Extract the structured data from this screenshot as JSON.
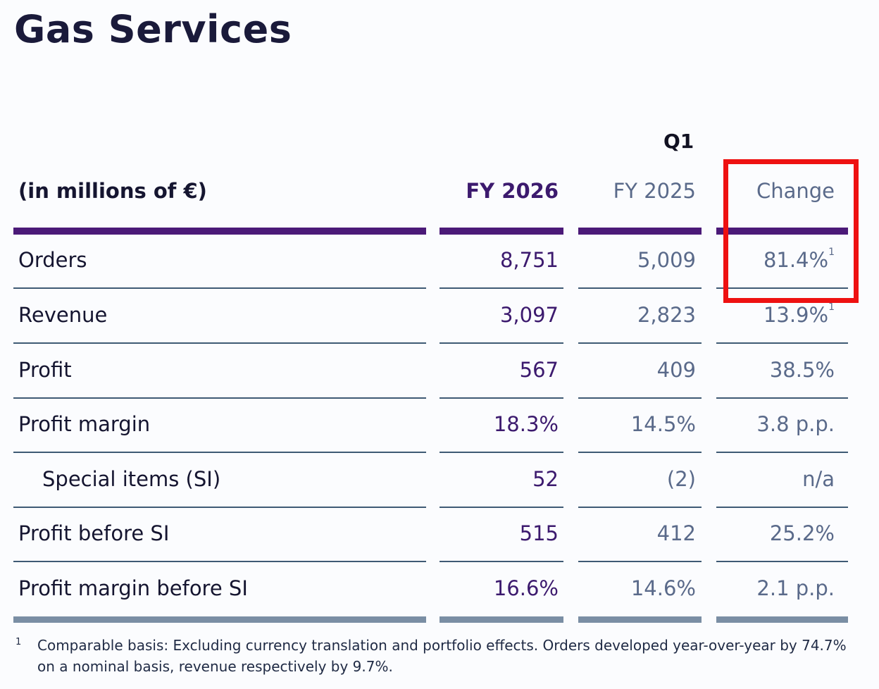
{
  "title": "Gas Services",
  "period_header": "Q1",
  "columns": {
    "label": "(in millions of €)",
    "current": "FY 2026",
    "prior": "FY 2025",
    "change": "Change"
  },
  "rows": [
    {
      "label": "Orders",
      "current": "8,751",
      "prior": "5,009",
      "change": "81.4%",
      "note": "1",
      "indent": false
    },
    {
      "label": "Revenue",
      "current": "3,097",
      "prior": "2,823",
      "change": "13.9%",
      "note": "1",
      "indent": false
    },
    {
      "label": "Profit",
      "current": "567",
      "prior": "409",
      "change": "38.5%",
      "note": "",
      "indent": false
    },
    {
      "label": "Profit margin",
      "current": "18.3%",
      "prior": "14.5%",
      "change": "3.8 p.p.",
      "note": "",
      "indent": false
    },
    {
      "label": "Special items (SI)",
      "current": "52",
      "prior": "(2)",
      "change": "n/a",
      "note": "",
      "indent": true
    },
    {
      "label": "Profit before SI",
      "current": "515",
      "prior": "412",
      "change": "25.2%",
      "note": "",
      "indent": false
    },
    {
      "label": "Profit margin before SI",
      "current": "16.6%",
      "prior": "14.6%",
      "change": "2.1 p.p.",
      "note": "",
      "indent": false
    }
  ],
  "footnote": {
    "mark": "1",
    "text": "Comparable basis: Excluding currency translation and portfolio effects. Orders developed year-over-year by 74.7% on a nominal basis, revenue respectively by 9.7%."
  },
  "highlight": {
    "target": "Orders change",
    "color": "#ee1111"
  },
  "colors": {
    "accent_purple": "#4b1a78",
    "muted_blue": "#5a6a8a",
    "highlight_red": "#ee1111"
  }
}
